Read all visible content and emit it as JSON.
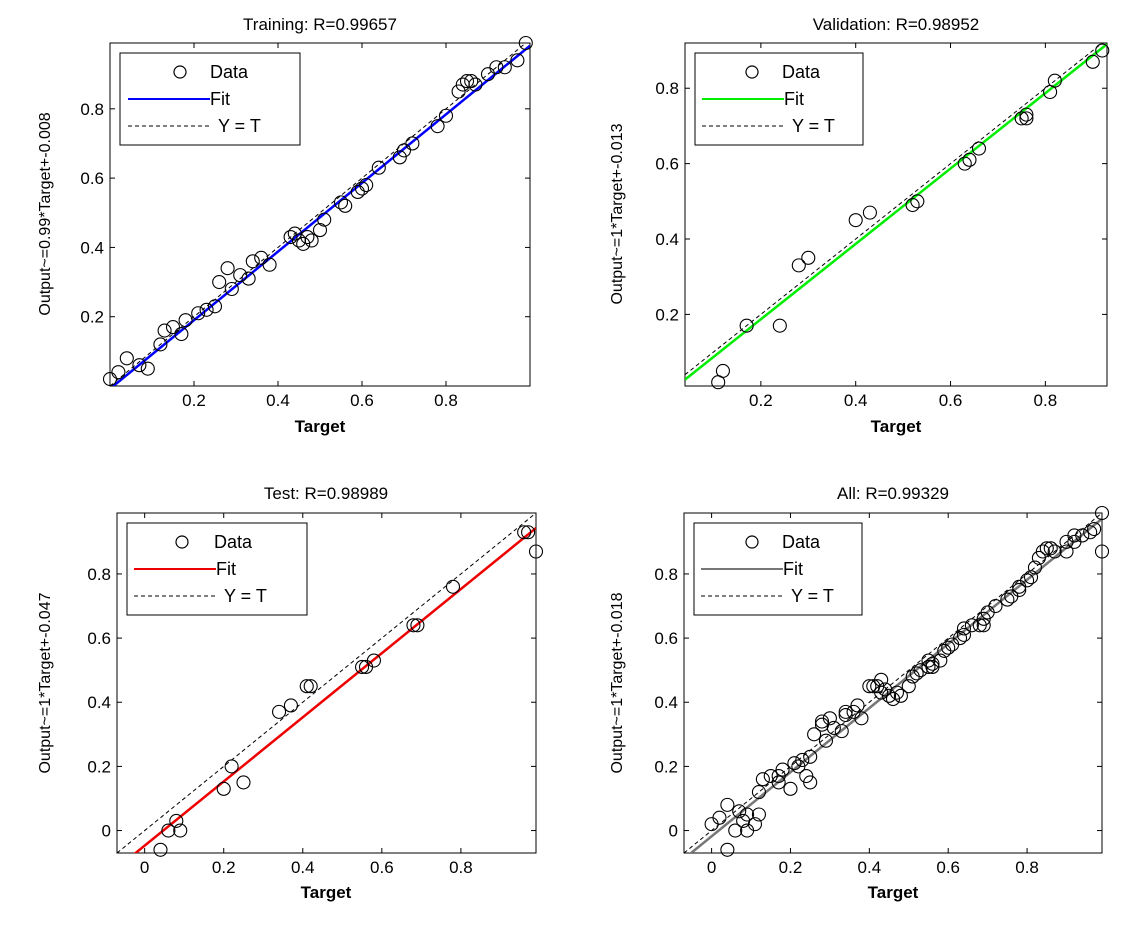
{
  "chart_data": [
    {
      "type": "scatter",
      "title": "Training: R=0.99657",
      "xlabel": "Target",
      "ylabel": "Output~=0.99*Target+-0.008",
      "xlim": [
        0.0,
        1.0
      ],
      "ylim": [
        0.0,
        0.99
      ],
      "xticks": [
        0.2,
        0.4,
        0.6,
        0.8
      ],
      "yticks": [
        0.2,
        0.4,
        0.6,
        0.8
      ],
      "fit": {
        "slope": 0.99,
        "intercept": -0.008,
        "color": "#0000ff"
      },
      "legend": {
        "placement": "top-left",
        "entries": [
          "Data",
          "Fit",
          "Y = T"
        ]
      },
      "points": [
        [
          0.0,
          0.02
        ],
        [
          0.02,
          0.04
        ],
        [
          0.04,
          0.08
        ],
        [
          0.07,
          0.06
        ],
        [
          0.09,
          0.05
        ],
        [
          0.12,
          0.12
        ],
        [
          0.13,
          0.16
        ],
        [
          0.15,
          0.17
        ],
        [
          0.17,
          0.15
        ],
        [
          0.18,
          0.19
        ],
        [
          0.21,
          0.21
        ],
        [
          0.23,
          0.22
        ],
        [
          0.25,
          0.23
        ],
        [
          0.26,
          0.3
        ],
        [
          0.28,
          0.34
        ],
        [
          0.29,
          0.28
        ],
        [
          0.31,
          0.32
        ],
        [
          0.33,
          0.31
        ],
        [
          0.34,
          0.36
        ],
        [
          0.36,
          0.37
        ],
        [
          0.38,
          0.35
        ],
        [
          0.43,
          0.43
        ],
        [
          0.44,
          0.44
        ],
        [
          0.45,
          0.42
        ],
        [
          0.46,
          0.41
        ],
        [
          0.47,
          0.43
        ],
        [
          0.48,
          0.42
        ],
        [
          0.5,
          0.45
        ],
        [
          0.51,
          0.48
        ],
        [
          0.55,
          0.53
        ],
        [
          0.56,
          0.52
        ],
        [
          0.59,
          0.56
        ],
        [
          0.6,
          0.57
        ],
        [
          0.61,
          0.58
        ],
        [
          0.64,
          0.63
        ],
        [
          0.69,
          0.66
        ],
        [
          0.7,
          0.68
        ],
        [
          0.72,
          0.7
        ],
        [
          0.78,
          0.75
        ],
        [
          0.8,
          0.78
        ],
        [
          0.83,
          0.85
        ],
        [
          0.84,
          0.87
        ],
        [
          0.85,
          0.88
        ],
        [
          0.86,
          0.88
        ],
        [
          0.87,
          0.87
        ],
        [
          0.9,
          0.9
        ],
        [
          0.92,
          0.92
        ],
        [
          0.94,
          0.92
        ],
        [
          0.97,
          0.94
        ],
        [
          0.99,
          0.99
        ]
      ]
    },
    {
      "type": "scatter",
      "title": "Validation: R=0.98952",
      "xlabel": "Target",
      "ylabel": "Output~=1*Target+-0.013",
      "xlim": [
        0.04,
        0.93
      ],
      "ylim": [
        0.01,
        0.92
      ],
      "xticks": [
        0.2,
        0.4,
        0.6,
        0.8
      ],
      "yticks": [
        0.2,
        0.4,
        0.6,
        0.8
      ],
      "fit": {
        "slope": 1,
        "intercept": -0.013,
        "color": "#00ee00"
      },
      "legend": {
        "placement": "top-left",
        "entries": [
          "Data",
          "Fit",
          "Y = T"
        ]
      },
      "points": [
        [
          0.11,
          0.02
        ],
        [
          0.12,
          0.05
        ],
        [
          0.17,
          0.17
        ],
        [
          0.24,
          0.17
        ],
        [
          0.28,
          0.33
        ],
        [
          0.3,
          0.35
        ],
        [
          0.4,
          0.45
        ],
        [
          0.43,
          0.47
        ],
        [
          0.52,
          0.49
        ],
        [
          0.53,
          0.5
        ],
        [
          0.63,
          0.6
        ],
        [
          0.64,
          0.61
        ],
        [
          0.66,
          0.64
        ],
        [
          0.75,
          0.72
        ],
        [
          0.76,
          0.73
        ],
        [
          0.76,
          0.72
        ],
        [
          0.81,
          0.79
        ],
        [
          0.82,
          0.82
        ],
        [
          0.9,
          0.87
        ],
        [
          0.92,
          0.9
        ]
      ]
    },
    {
      "type": "scatter",
      "title": "Test: R=0.98989",
      "xlabel": "Target",
      "ylabel": "Output~=1*Target+-0.047",
      "xlim": [
        -0.07,
        0.99
      ],
      "ylim": [
        -0.07,
        0.99
      ],
      "xticks": [
        0,
        0.2,
        0.4,
        0.6,
        0.8
      ],
      "yticks": [
        0,
        0.2,
        0.4,
        0.6,
        0.8
      ],
      "fit": {
        "slope": 1,
        "intercept": -0.047,
        "color": "#ee0000"
      },
      "legend": {
        "placement": "top-left",
        "entries": [
          "Data",
          "Fit",
          "Y = T"
        ]
      },
      "points": [
        [
          0.04,
          -0.06
        ],
        [
          0.06,
          0.0
        ],
        [
          0.08,
          0.03
        ],
        [
          0.09,
          0.0
        ],
        [
          0.2,
          0.13
        ],
        [
          0.22,
          0.2
        ],
        [
          0.25,
          0.15
        ],
        [
          0.34,
          0.37
        ],
        [
          0.37,
          0.39
        ],
        [
          0.41,
          0.45
        ],
        [
          0.42,
          0.45
        ],
        [
          0.55,
          0.51
        ],
        [
          0.56,
          0.51
        ],
        [
          0.58,
          0.53
        ],
        [
          0.68,
          0.64
        ],
        [
          0.69,
          0.64
        ],
        [
          0.78,
          0.76
        ],
        [
          0.96,
          0.93
        ],
        [
          0.97,
          0.93
        ],
        [
          0.99,
          0.87
        ]
      ]
    },
    {
      "type": "scatter",
      "title": "All: R=0.99329",
      "xlabel": "Target",
      "ylabel": "Output~=1*Target+-0.018",
      "xlim": [
        -0.07,
        0.99
      ],
      "ylim": [
        -0.07,
        0.99
      ],
      "xticks": [
        0,
        0.2,
        0.4,
        0.6,
        0.8
      ],
      "yticks": [
        0,
        0.2,
        0.4,
        0.6,
        0.8
      ],
      "fit": {
        "slope": 1,
        "intercept": -0.018,
        "color": "#777777"
      },
      "legend": {
        "placement": "top-left",
        "entries": [
          "Data",
          "Fit",
          "Y = T"
        ]
      },
      "points": [
        [
          0.0,
          0.02
        ],
        [
          0.02,
          0.04
        ],
        [
          0.04,
          -0.06
        ],
        [
          0.04,
          0.08
        ],
        [
          0.06,
          0.0
        ],
        [
          0.07,
          0.06
        ],
        [
          0.08,
          0.03
        ],
        [
          0.09,
          0.05
        ],
        [
          0.09,
          0.0
        ],
        [
          0.11,
          0.02
        ],
        [
          0.12,
          0.05
        ],
        [
          0.12,
          0.12
        ],
        [
          0.13,
          0.16
        ],
        [
          0.15,
          0.17
        ],
        [
          0.17,
          0.15
        ],
        [
          0.17,
          0.17
        ],
        [
          0.18,
          0.19
        ],
        [
          0.2,
          0.13
        ],
        [
          0.21,
          0.21
        ],
        [
          0.22,
          0.2
        ],
        [
          0.23,
          0.22
        ],
        [
          0.24,
          0.17
        ],
        [
          0.25,
          0.15
        ],
        [
          0.25,
          0.23
        ],
        [
          0.26,
          0.3
        ],
        [
          0.28,
          0.34
        ],
        [
          0.28,
          0.33
        ],
        [
          0.29,
          0.28
        ],
        [
          0.3,
          0.35
        ],
        [
          0.31,
          0.32
        ],
        [
          0.33,
          0.31
        ],
        [
          0.34,
          0.36
        ],
        [
          0.34,
          0.37
        ],
        [
          0.36,
          0.37
        ],
        [
          0.37,
          0.39
        ],
        [
          0.38,
          0.35
        ],
        [
          0.4,
          0.45
        ],
        [
          0.41,
          0.45
        ],
        [
          0.42,
          0.45
        ],
        [
          0.43,
          0.47
        ],
        [
          0.43,
          0.43
        ],
        [
          0.44,
          0.44
        ],
        [
          0.45,
          0.42
        ],
        [
          0.46,
          0.41
        ],
        [
          0.47,
          0.43
        ],
        [
          0.48,
          0.42
        ],
        [
          0.5,
          0.45
        ],
        [
          0.51,
          0.48
        ],
        [
          0.52,
          0.49
        ],
        [
          0.53,
          0.5
        ],
        [
          0.55,
          0.53
        ],
        [
          0.55,
          0.51
        ],
        [
          0.56,
          0.52
        ],
        [
          0.56,
          0.51
        ],
        [
          0.58,
          0.53
        ],
        [
          0.59,
          0.56
        ],
        [
          0.6,
          0.57
        ],
        [
          0.61,
          0.58
        ],
        [
          0.63,
          0.6
        ],
        [
          0.64,
          0.63
        ],
        [
          0.64,
          0.61
        ],
        [
          0.66,
          0.64
        ],
        [
          0.68,
          0.64
        ],
        [
          0.69,
          0.66
        ],
        [
          0.69,
          0.64
        ],
        [
          0.7,
          0.68
        ],
        [
          0.72,
          0.7
        ],
        [
          0.75,
          0.72
        ],
        [
          0.76,
          0.73
        ],
        [
          0.78,
          0.75
        ],
        [
          0.78,
          0.76
        ],
        [
          0.8,
          0.78
        ],
        [
          0.81,
          0.79
        ],
        [
          0.82,
          0.82
        ],
        [
          0.83,
          0.85
        ],
        [
          0.84,
          0.87
        ],
        [
          0.85,
          0.88
        ],
        [
          0.86,
          0.88
        ],
        [
          0.87,
          0.87
        ],
        [
          0.9,
          0.87
        ],
        [
          0.9,
          0.9
        ],
        [
          0.92,
          0.9
        ],
        [
          0.92,
          0.92
        ],
        [
          0.94,
          0.92
        ],
        [
          0.96,
          0.93
        ],
        [
          0.97,
          0.94
        ],
        [
          0.99,
          0.87
        ],
        [
          0.99,
          0.99
        ]
      ]
    }
  ]
}
